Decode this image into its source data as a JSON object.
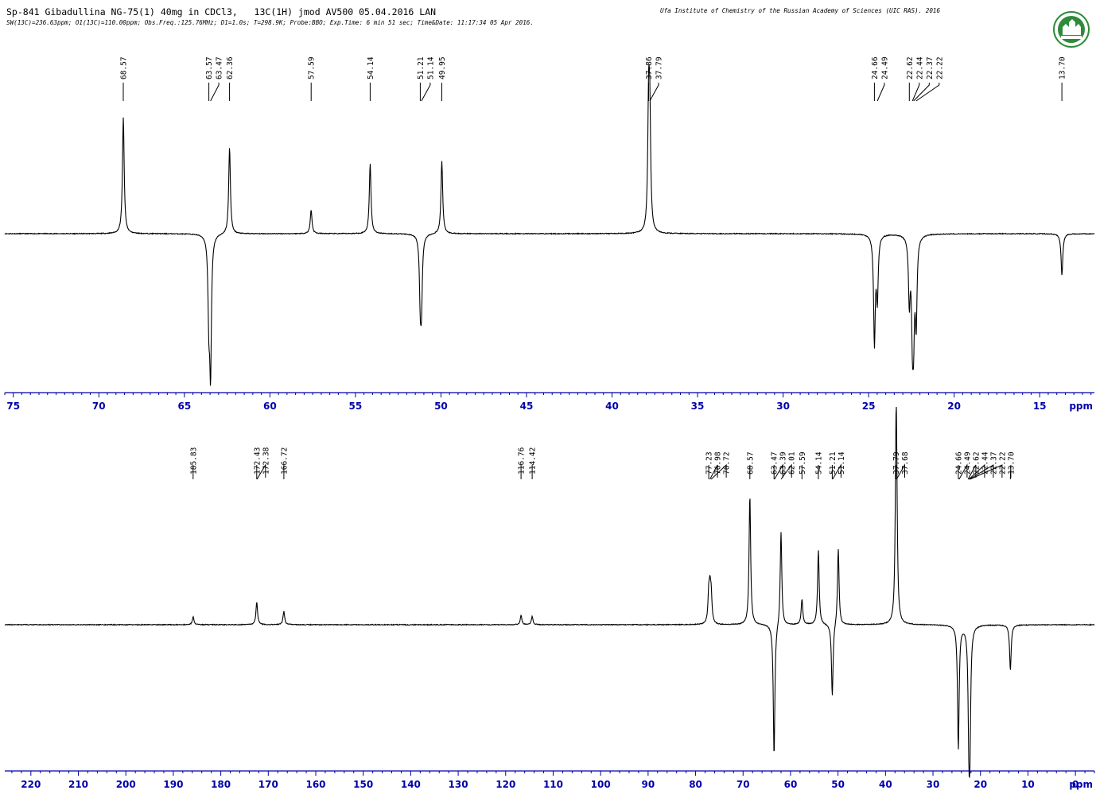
{
  "header": {
    "line1": "Sp-841 Gibadullina NG-75(1) 40mg in CDCl3,   13C(1H) jmod AV500 05.04.2016 LAN",
    "line2": "SW(13C)=236.63ppm; O1(13C)=110.00ppm; Obs.Freq.:125.76MHz; D1=1.0s; T=298.9K; Probe:BBO; Exp.Time: 6 min 51 sec; Time&Date: 11:17:34 05 Apr 2016.",
    "institute": "Ufa Institute of Chemistry of the Russian Academy of Sciences (UIC RAS). 2016"
  },
  "colors": {
    "spectrum": "#000000",
    "axis": "#0000aa",
    "logo_green": "#2e8b3a"
  },
  "chart_data": [
    {
      "type": "line",
      "xlabel": "ppm",
      "xlim": [
        75.5,
        11.8
      ],
      "ticks": [
        75,
        70,
        65,
        60,
        55,
        50,
        45,
        40,
        35,
        30,
        25,
        20,
        15
      ],
      "peak_labels": [
        "68.57",
        "63.57",
        "63.47",
        "62.36",
        "57.59",
        "54.14",
        "51.21",
        "51.14",
        "49.95",
        "37.86",
        "37.79",
        "24.66",
        "24.49",
        "22.62",
        "22.44",
        "22.37",
        "22.22",
        "13.70"
      ],
      "peaks": [
        {
          "ppm": 68.57,
          "amp": 0.83
        },
        {
          "ppm": 63.57,
          "amp": -0.55
        },
        {
          "ppm": 63.47,
          "amp": -0.95
        },
        {
          "ppm": 62.36,
          "amp": 0.62
        },
        {
          "ppm": 57.59,
          "amp": 0.17
        },
        {
          "ppm": 54.14,
          "amp": 0.5
        },
        {
          "ppm": 51.21,
          "amp": -0.43
        },
        {
          "ppm": 51.14,
          "amp": -0.45
        },
        {
          "ppm": 49.95,
          "amp": 0.52
        },
        {
          "ppm": 37.86,
          "amp": 0.88
        },
        {
          "ppm": 37.79,
          "amp": 0.72
        },
        {
          "ppm": 24.66,
          "amp": -0.77
        },
        {
          "ppm": 24.49,
          "amp": -0.44
        },
        {
          "ppm": 22.62,
          "amp": -0.46
        },
        {
          "ppm": 22.44,
          "amp": -0.6
        },
        {
          "ppm": 22.37,
          "amp": -0.58
        },
        {
          "ppm": 22.22,
          "amp": -0.6
        },
        {
          "ppm": 13.7,
          "amp": -0.3
        }
      ]
    },
    {
      "type": "line",
      "xlabel": "ppm",
      "xlim": [
        225.5,
        -4
      ],
      "ticks": [
        220,
        210,
        200,
        190,
        180,
        170,
        160,
        150,
        140,
        130,
        120,
        110,
        100,
        90,
        80,
        70,
        60,
        50,
        40,
        30,
        20,
        10,
        0
      ],
      "peak_labels": [
        "185.83",
        "172.43",
        "172.38",
        "166.72",
        "116.76",
        "114.42",
        "77.23",
        "76.98",
        "76.72",
        "68.57",
        "63.47",
        "63.39",
        "62.01",
        "57.59",
        "54.14",
        "51.21",
        "51.14",
        "37.79",
        "37.68",
        "24.66",
        "24.49",
        "22.62",
        "22.44",
        "22.37",
        "22.22",
        "13.70"
      ],
      "peaks": [
        {
          "ppm": 185.83,
          "amp": 0.06
        },
        {
          "ppm": 172.43,
          "amp": 0.17
        },
        {
          "ppm": 166.72,
          "amp": 0.1
        },
        {
          "ppm": 116.76,
          "amp": 0.07
        },
        {
          "ppm": 114.42,
          "amp": 0.06
        },
        {
          "ppm": 77.23,
          "amp": 0.2
        },
        {
          "ppm": 76.98,
          "amp": 0.22
        },
        {
          "ppm": 76.72,
          "amp": 0.2
        },
        {
          "ppm": 68.57,
          "amp": 0.97
        },
        {
          "ppm": 63.47,
          "amp": -1.0
        },
        {
          "ppm": 62.01,
          "amp": 0.71
        },
        {
          "ppm": 57.59,
          "amp": 0.19
        },
        {
          "ppm": 54.14,
          "amp": 0.56
        },
        {
          "ppm": 51.21,
          "amp": -0.55
        },
        {
          "ppm": 49.95,
          "amp": 0.58
        },
        {
          "ppm": 37.79,
          "amp": 0.98
        },
        {
          "ppm": 37.68,
          "amp": 0.8
        },
        {
          "ppm": 24.66,
          "amp": -0.93
        },
        {
          "ppm": 22.44,
          "amp": -0.73
        },
        {
          "ppm": 22.22,
          "amp": -0.75
        },
        {
          "ppm": 13.7,
          "amp": -0.34
        }
      ]
    }
  ]
}
